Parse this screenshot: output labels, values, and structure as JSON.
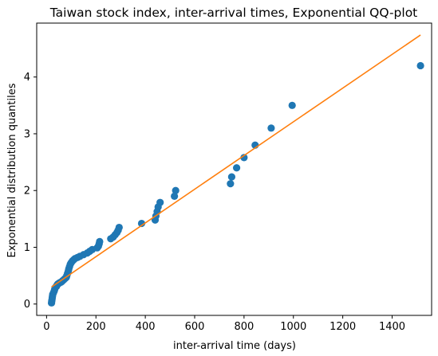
{
  "chart_data": {
    "type": "scatter",
    "title": "Taiwan stock index, inter-arrival times, Exponential QQ-plot",
    "xlabel": "inter-arrival time (days)",
    "ylabel": "Exponential distribution quantiles",
    "xlim": [
      -40,
      1560
    ],
    "ylim": [
      -0.2,
      4.95
    ],
    "xticks": [
      0,
      200,
      400,
      600,
      800,
      1000,
      1200,
      1400
    ],
    "yticks": [
      0,
      1,
      2,
      3,
      4
    ],
    "grid": false,
    "colors": {
      "points": "#1f77b4",
      "fit_line": "#ff7f0e"
    },
    "series": [
      {
        "kind": "scatter",
        "x": [
          20,
          21,
          22,
          23,
          24,
          25,
          28,
          31,
          33,
          35,
          40,
          42,
          45,
          48,
          52,
          55,
          60,
          65,
          70,
          75,
          80,
          82,
          85,
          88,
          90,
          93,
          96,
          100,
          105,
          110,
          115,
          125,
          135,
          150,
          165,
          175,
          185,
          205,
          210,
          213,
          215,
          260,
          270,
          278,
          285,
          290,
          294,
          385,
          440,
          443,
          448,
          452,
          460,
          518,
          523,
          745,
          750,
          770,
          800,
          845,
          910,
          995,
          1515
        ],
        "y": [
          0.02,
          0.05,
          0.08,
          0.11,
          0.14,
          0.17,
          0.2,
          0.23,
          0.26,
          0.29,
          0.31,
          0.33,
          0.35,
          0.36,
          0.37,
          0.38,
          0.39,
          0.41,
          0.43,
          0.45,
          0.47,
          0.5,
          0.54,
          0.58,
          0.62,
          0.66,
          0.7,
          0.73,
          0.76,
          0.78,
          0.8,
          0.82,
          0.84,
          0.87,
          0.9,
          0.93,
          0.96,
          0.99,
          1.02,
          1.06,
          1.1,
          1.15,
          1.18,
          1.22,
          1.26,
          1.3,
          1.35,
          1.42,
          1.48,
          1.55,
          1.63,
          1.71,
          1.79,
          1.9,
          2.0,
          2.12,
          2.24,
          2.4,
          2.58,
          2.8,
          3.1,
          3.5,
          4.2
        ]
      },
      {
        "kind": "line",
        "x": [
          20,
          1515
        ],
        "y": [
          0.3,
          4.74
        ]
      }
    ]
  }
}
